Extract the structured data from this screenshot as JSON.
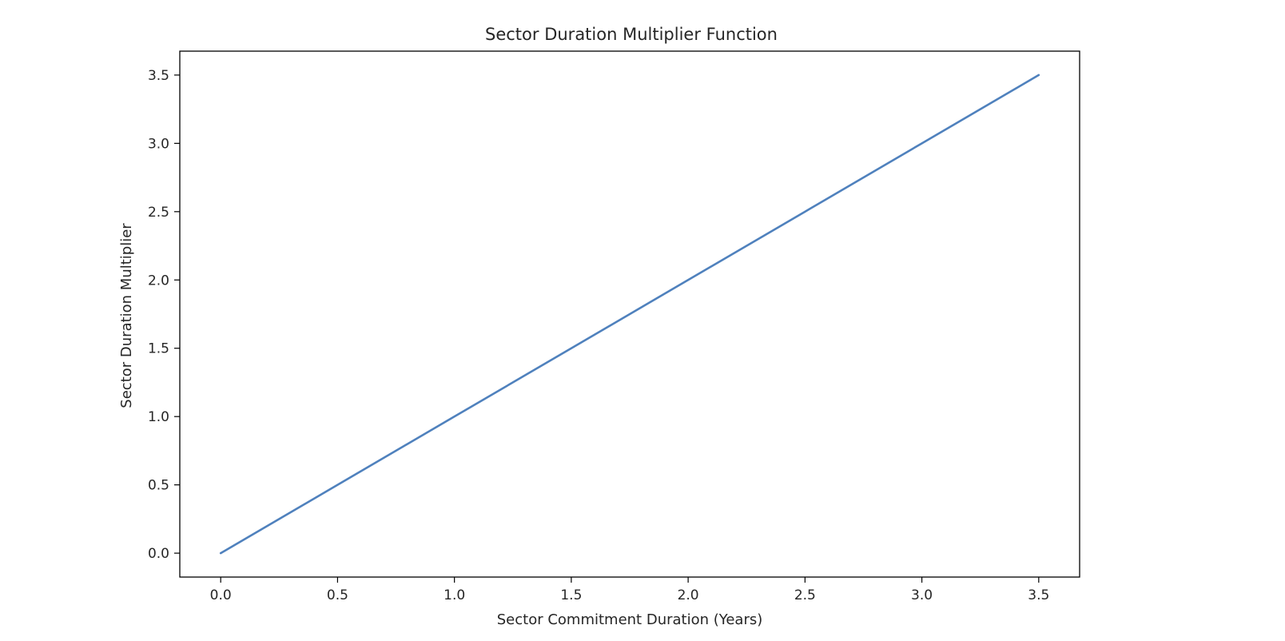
{
  "chart_data": {
    "type": "line",
    "title": "Sector Duration Multiplier Function",
    "xlabel": "Sector Commitment Duration (Years)",
    "ylabel": "Sector Duration Multiplier",
    "xlim": [
      -0.175,
      3.675
    ],
    "ylim": [
      -0.175,
      3.675
    ],
    "x_ticks": [
      "0.0",
      "0.5",
      "1.0",
      "1.5",
      "2.0",
      "2.5",
      "3.0",
      "3.5"
    ],
    "y_ticks": [
      "0.0",
      "0.5",
      "1.0",
      "1.5",
      "2.0",
      "2.5",
      "3.0",
      "3.5"
    ],
    "x_tick_values": [
      0,
      0.5,
      1,
      1.5,
      2,
      2.5,
      3,
      3.5
    ],
    "y_tick_values": [
      0,
      0.5,
      1,
      1.5,
      2,
      2.5,
      3,
      3.5
    ],
    "grid": false,
    "series": [
      {
        "color": "#4f81bd",
        "x": [
          0,
          0.5,
          1.0,
          1.5,
          2.0,
          2.5,
          3.0,
          3.5
        ],
        "y": [
          0,
          0.5,
          1.0,
          1.5,
          2.0,
          2.5,
          3.0,
          3.5
        ]
      }
    ]
  }
}
